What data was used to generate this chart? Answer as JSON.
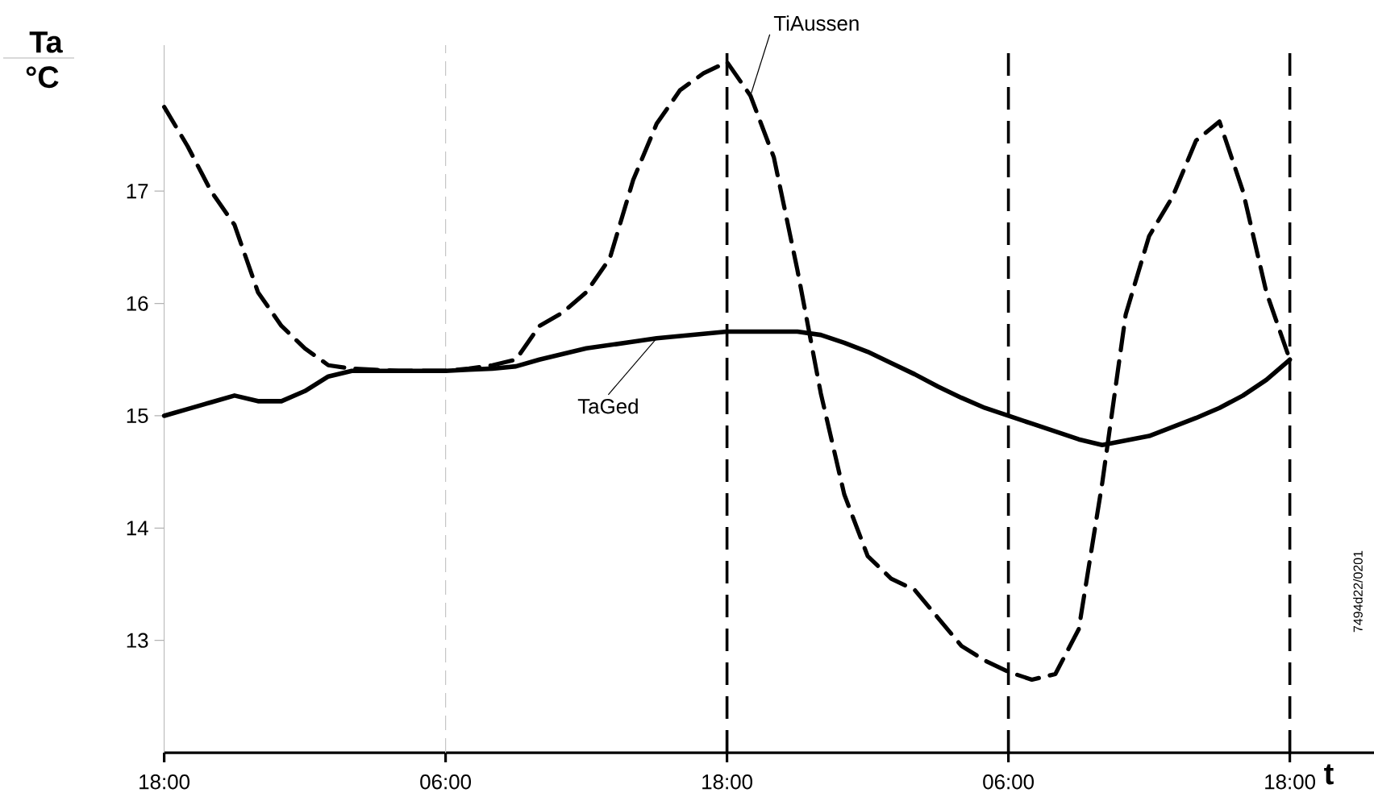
{
  "chart_data": {
    "type": "line",
    "xlabel": "t",
    "ylabel": "Ta",
    "categories": [
      "18:00",
      null,
      null,
      null,
      null,
      null,
      null,
      null,
      null,
      null,
      null,
      null,
      "06:00",
      null,
      null,
      null,
      null,
      null,
      null,
      null,
      null,
      null,
      null,
      null,
      "18:00",
      null,
      null,
      null,
      null,
      null,
      null,
      null,
      null,
      null,
      null,
      null,
      "06:00",
      null,
      null,
      null,
      null,
      null,
      null,
      null,
      null,
      null,
      null,
      null,
      "18:00"
    ],
    "ylim": [
      12,
      18.3
    ],
    "yticks": [
      13,
      14,
      15,
      16,
      17
    ],
    "series": [
      {
        "name": "TiAussen",
        "color": "#000000",
        "line_style": "dashed",
        "values": [
          17.75,
          17.4,
          17.0,
          16.7,
          16.1,
          15.8,
          15.6,
          15.45,
          15.42,
          15.41,
          15.4,
          15.4,
          15.4,
          15.42,
          15.45,
          15.5,
          15.8,
          15.92,
          16.1,
          16.4,
          17.1,
          17.6,
          17.9,
          18.05,
          18.15,
          17.85,
          17.3,
          16.3,
          15.2,
          14.3,
          13.75,
          13.55,
          13.45,
          13.2,
          12.95,
          12.82,
          12.72,
          12.65,
          12.7,
          13.1,
          14.4,
          15.9,
          16.6,
          16.95,
          17.45,
          17.62,
          17.0,
          16.1,
          15.5
        ]
      },
      {
        "name": "TaGed",
        "color": "#000000",
        "line_style": "solid",
        "values": [
          15.0,
          15.06,
          15.12,
          15.18,
          15.13,
          15.13,
          15.22,
          15.35,
          15.4,
          15.4,
          15.4,
          15.4,
          15.4,
          15.41,
          15.42,
          15.44,
          15.5,
          15.55,
          15.6,
          15.63,
          15.66,
          15.69,
          15.71,
          15.73,
          15.75,
          15.75,
          15.75,
          15.75,
          15.72,
          15.65,
          15.57,
          15.47,
          15.37,
          15.26,
          15.16,
          15.07,
          15.0,
          14.93,
          14.86,
          14.79,
          14.74,
          14.78,
          14.82,
          14.9,
          14.98,
          15.07,
          15.18,
          15.32,
          15.5
        ]
      }
    ],
    "annotations": [
      "°C",
      "7494d22/0201"
    ],
    "grid": "x"
  }
}
